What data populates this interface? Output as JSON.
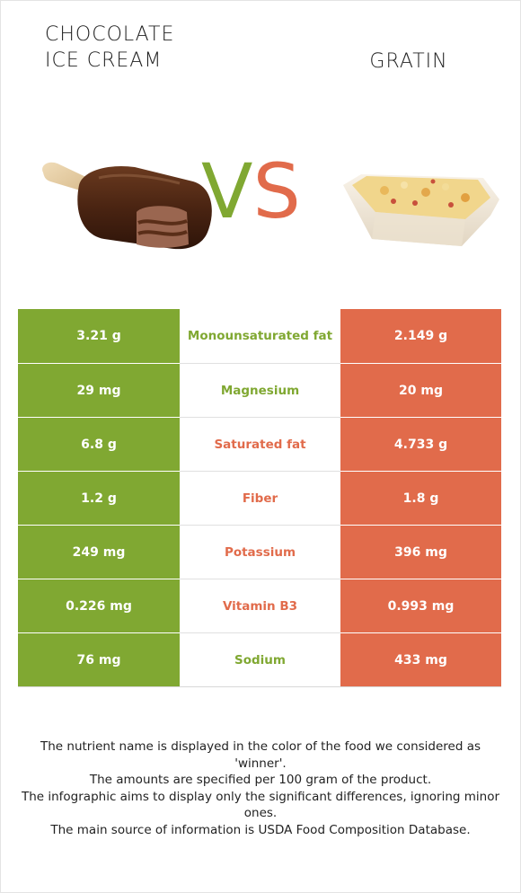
{
  "food_left": {
    "name_line1": "CHOCOLATE",
    "name_line2": "ICE CREAM"
  },
  "food_right": {
    "name": "GRATIN"
  },
  "vs": {
    "v": "V",
    "s": "S"
  },
  "colors": {
    "winner_left": "#80a832",
    "winner_right": "#e16b4b",
    "neutral": "#222222"
  },
  "nutrients": [
    {
      "name": "Monounsaturated fat",
      "left": "3.21 g",
      "right": "2.149 g",
      "winner": "left"
    },
    {
      "name": "Magnesium",
      "left": "29 mg",
      "right": "20 mg",
      "winner": "left"
    },
    {
      "name": "Saturated fat",
      "left": "6.8 g",
      "right": "4.733 g",
      "winner": "right"
    },
    {
      "name": "Fiber",
      "left": "1.2 g",
      "right": "1.8 g",
      "winner": "right"
    },
    {
      "name": "Potassium",
      "left": "249 mg",
      "right": "396 mg",
      "winner": "right"
    },
    {
      "name": "Vitamin B3",
      "left": "0.226 mg",
      "right": "0.993 mg",
      "winner": "right"
    },
    {
      "name": "Sodium",
      "left": "76 mg",
      "right": "433 mg",
      "winner": "left"
    }
  ],
  "footnote": {
    "line1": "The nutrient name is displayed in the color of the food we considered as 'winner'.",
    "line2": "The amounts are specified per 100 gram of the product.",
    "line3": "The infographic aims to display only the significant differences, ignoring minor ones.",
    "line4": "The main source of information is USDA Food Composition Database."
  }
}
